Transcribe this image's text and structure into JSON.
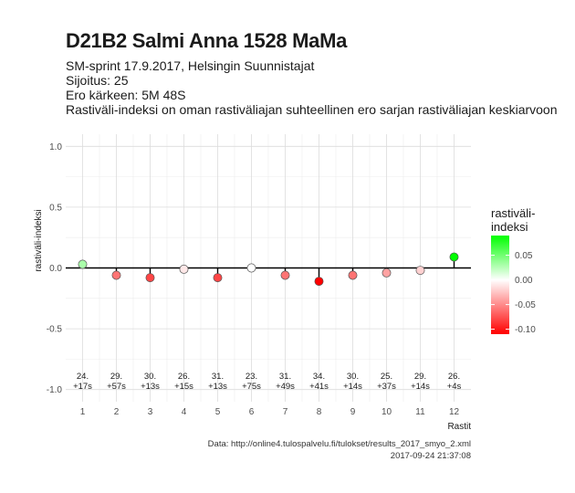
{
  "header": {
    "title": "D21B2 Salmi Anna 1528 MaMa",
    "subtitle_lines": [
      "SM-sprint 17.9.2017, Helsingin Suunnistajat",
      "Sijoitus: 25",
      "Ero kärkeen: 5M 48S",
      "Rastiväli-indeksi on oman rastiväliajan suhteellinen ero sarjan rastiväliajan keskiarvoon"
    ]
  },
  "chart_data": {
    "type": "scatter",
    "xlabel": "Rastit",
    "ylabel": "rastiväli-indeksi",
    "xlim": [
      0.5,
      12.5
    ],
    "ylim": [
      -1.0,
      1.0
    ],
    "x_ticks": [
      1,
      2,
      3,
      4,
      5,
      6,
      7,
      8,
      9,
      10,
      11,
      12
    ],
    "y_ticks": [
      1.0,
      0.5,
      0.0,
      -0.5,
      -1.0
    ],
    "y_tick_labels": [
      "1.0",
      "0.5",
      "0.0",
      "-0.5",
      "-1.0"
    ],
    "x": [
      1,
      2,
      3,
      4,
      5,
      6,
      7,
      8,
      9,
      10,
      11,
      12
    ],
    "values": [
      0.03,
      -0.06,
      -0.08,
      -0.01,
      -0.08,
      0.0,
      -0.06,
      -0.11,
      -0.06,
      -0.04,
      -0.02,
      0.09
    ],
    "annotations": [
      [
        "24.",
        "+17s"
      ],
      [
        "29.",
        "+57s"
      ],
      [
        "30.",
        "+13s"
      ],
      [
        "26.",
        "+15s"
      ],
      [
        "31.",
        "+13s"
      ],
      [
        "23.",
        "+75s"
      ],
      [
        "31.",
        "+49s"
      ],
      [
        "34.",
        "+41s"
      ],
      [
        "30.",
        "+14s"
      ],
      [
        "25.",
        "+37s"
      ],
      [
        "29.",
        "+14s"
      ],
      [
        "26.",
        "+4s"
      ]
    ],
    "legend": {
      "title_lines": [
        "rastiväli-",
        "indeksi"
      ],
      "range": [
        -0.11,
        0.09
      ],
      "ticks": [
        0.05,
        0.0,
        -0.05,
        -0.1
      ],
      "tick_labels": [
        "0.05",
        "0.00",
        "-0.05",
        "-0.10"
      ],
      "color_low": "#ff0000",
      "color_mid": "#ffffff",
      "color_high": "#00ff00",
      "placement": "right"
    },
    "grid": true
  },
  "caption": {
    "source": "Data: http://online4.tulospalvelu.fi/tulokset/results_2017_smyo_2.xml",
    "timestamp": "2017-09-24 21:37:08"
  }
}
